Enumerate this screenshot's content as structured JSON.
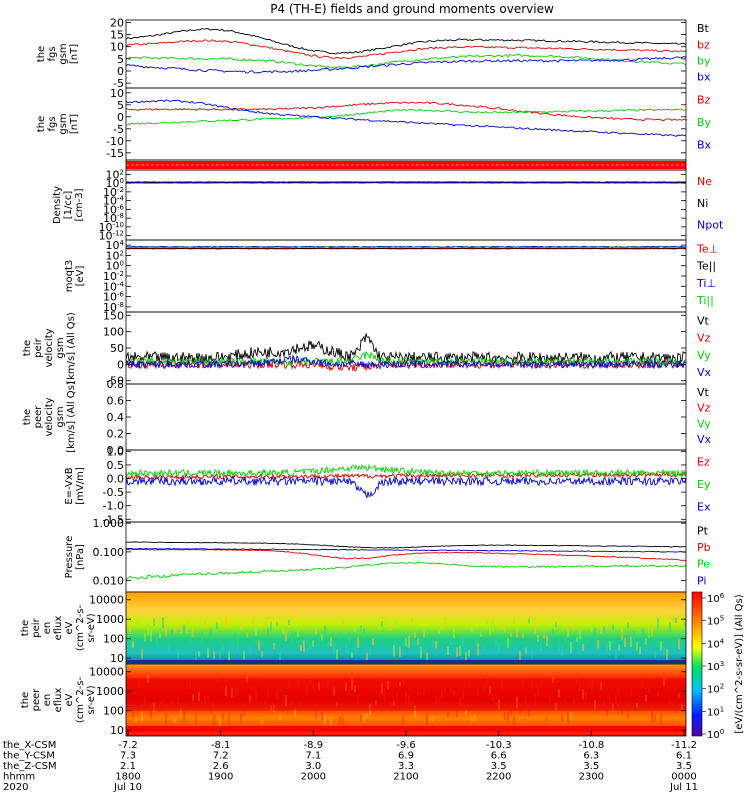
{
  "title": "P4 (TH-E) fields and ground moments overview",
  "colors": {
    "black": "#000000",
    "red": "#e00000",
    "green": "#00d000",
    "blue": "#0000d0"
  },
  "time_axis": {
    "rows": [
      {
        "label": "the_X-CSM",
        "values": [
          "-7.2",
          "-8.1",
          "-8.9",
          "-9.6",
          "-10.3",
          "-10.8",
          "-11.2"
        ]
      },
      {
        "label": "the_Y-CSM",
        "values": [
          "7.3",
          "7.2",
          "7.1",
          "6.9",
          "6.6",
          "6.3",
          "6.1"
        ]
      },
      {
        "label": "the_Z-CSM",
        "values": [
          "2.1",
          "2.6",
          "3.0",
          "3.3",
          "3.5",
          "3.5",
          "3.5"
        ]
      },
      {
        "label": "hhmm",
        "values": [
          "1800",
          "1900",
          "2000",
          "2100",
          "2200",
          "2300",
          "0000"
        ]
      },
      {
        "label": "2020",
        "values": [
          "Jul 10",
          "",
          "",
          "",
          "",
          "",
          "Jul 11"
        ]
      }
    ]
  },
  "colorbar": {
    "label": "[eV/(cm^2-s-sr-eV)] (All Qs)",
    "ticks": [
      "10^6",
      "10^5",
      "10^4",
      "10^3",
      "10^2",
      "10^1",
      "10^0"
    ]
  },
  "chart_data": [
    {
      "type": "line",
      "ylabel": [
        "the",
        "fgs",
        "gsm",
        "[nT]"
      ],
      "yticks": [
        "20",
        "15",
        "10",
        "5",
        "0",
        "-5"
      ],
      "series": [
        {
          "name": "Bt",
          "color": "black"
        },
        {
          "name": "bz",
          "color": "red"
        },
        {
          "name": "by",
          "color": "green"
        },
        {
          "name": "bx",
          "color": "blue"
        }
      ]
    },
    {
      "type": "line",
      "ylabel": [
        "the",
        "fgs",
        "gsm",
        "[nT]"
      ],
      "yticks": [
        "10",
        "5",
        "0",
        "-5",
        "-10",
        "-15"
      ],
      "series": [
        {
          "name": "Bz",
          "color": "red"
        },
        {
          "name": "By",
          "color": "green"
        },
        {
          "name": "Bx",
          "color": "blue"
        }
      ]
    },
    {
      "type": "bar",
      "ylabel": [],
      "yticks": [],
      "series": []
    },
    {
      "type": "line",
      "ylabel": [
        "Density",
        "[1/cc]",
        "[cm-3]"
      ],
      "yticks": [
        "10^2",
        "10^0",
        "10^-2",
        "10^-4",
        "10^-6",
        "10^-8",
        "10^-10",
        "10^-12"
      ],
      "series": [
        {
          "name": "Ne",
          "color": "red"
        },
        {
          "name": "Ni",
          "color": "black"
        },
        {
          "name": "Npot",
          "color": "blue"
        }
      ]
    },
    {
      "type": "line",
      "ylabel": [
        "moqt3",
        "[eV]"
      ],
      "yticks": [
        "10^4",
        "10^2",
        "10^0",
        "10^-2",
        "10^-4",
        "10^-6",
        "10^-8"
      ],
      "series": [
        {
          "name": "Te⊥",
          "color": "red"
        },
        {
          "name": "Te||",
          "color": "black"
        },
        {
          "name": "Ti⊥",
          "color": "blue"
        },
        {
          "name": "Ti||",
          "color": "green"
        }
      ]
    },
    {
      "type": "line",
      "ylabel": [
        "the",
        "peir",
        "velocity",
        "gsm",
        "[km/s] (All Qs)"
      ],
      "yticks": [
        "150",
        "100",
        "50",
        "0",
        "-50"
      ],
      "series": [
        {
          "name": "Vt",
          "color": "black"
        },
        {
          "name": "Vz",
          "color": "red"
        },
        {
          "name": "Vy",
          "color": "green"
        },
        {
          "name": "Vx",
          "color": "blue"
        }
      ]
    },
    {
      "type": "line",
      "ylabel": [
        "the",
        "peer",
        "velocity",
        "gsm",
        "[km/s] (All Qs)"
      ],
      "yticks": [
        "0.8",
        "0.6",
        "0.4",
        "0.2",
        "0.0"
      ],
      "series": [
        {
          "name": "Vt",
          "color": "black"
        },
        {
          "name": "Vz",
          "color": "red"
        },
        {
          "name": "Vy",
          "color": "green"
        },
        {
          "name": "Vx",
          "color": "blue"
        }
      ]
    },
    {
      "type": "line",
      "ylabel": [
        "E=-VxB",
        "[mV/m]"
      ],
      "yticks": [
        "1.0",
        "0.5",
        "0.0",
        "-0.5",
        "-1.0",
        "-1.5"
      ],
      "series": [
        {
          "name": "Ez",
          "color": "red"
        },
        {
          "name": "Ey",
          "color": "green"
        },
        {
          "name": "Ex",
          "color": "blue"
        }
      ]
    },
    {
      "type": "line",
      "ylabel": [
        "Pressure",
        "[nPa]"
      ],
      "yticks": [
        "1.000",
        "0.100",
        "0.010"
      ],
      "series": [
        {
          "name": "Pt",
          "color": "black"
        },
        {
          "name": "Pb",
          "color": "red"
        },
        {
          "name": "Pe",
          "color": "green"
        },
        {
          "name": "Pi",
          "color": "blue"
        }
      ]
    },
    {
      "type": "heatmap",
      "ylabel": [
        "the",
        "peir",
        "en",
        "eflux",
        "eV",
        "(cm^2-s-",
        "sr-eV)"
      ],
      "yticks": [
        "10000",
        "1000",
        "100",
        "10"
      ],
      "series": []
    },
    {
      "type": "heatmap",
      "ylabel": [
        "the",
        "peer",
        "en",
        "eflux",
        "eV",
        "(cm^2-s-",
        "sr-eV)"
      ],
      "yticks": [
        "10000",
        "1000",
        "100",
        "10"
      ],
      "series": []
    }
  ]
}
